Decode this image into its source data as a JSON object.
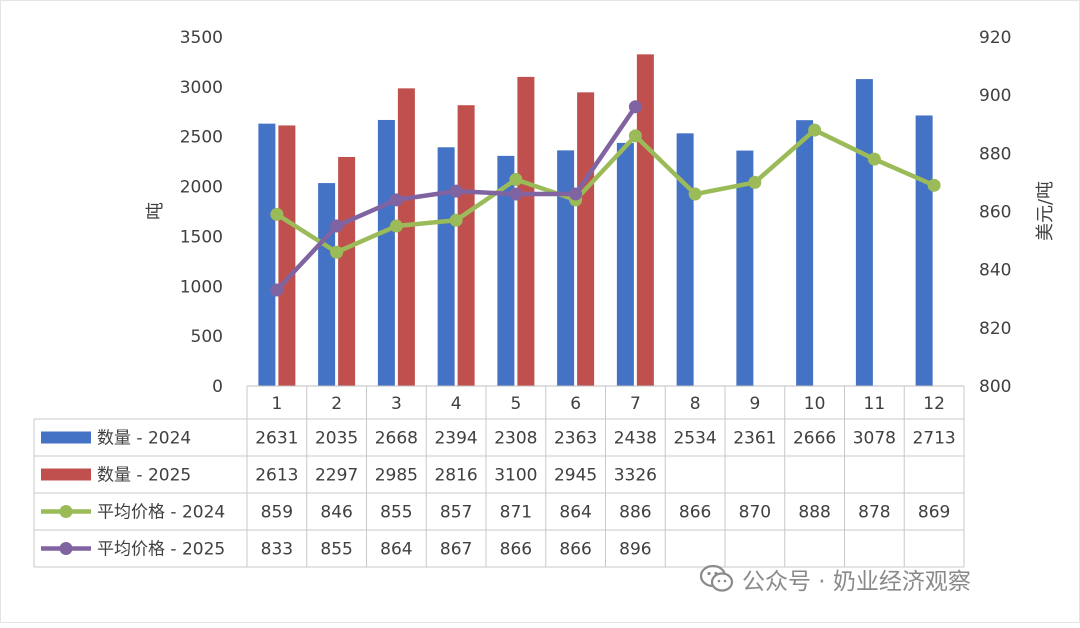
{
  "chart_data": {
    "type": "bar+line",
    "categories": [
      "1",
      "2",
      "3",
      "4",
      "5",
      "6",
      "7",
      "8",
      "9",
      "10",
      "11",
      "12"
    ],
    "y_left": {
      "label": "吨",
      "range": [
        0,
        3500
      ],
      "ticks": [
        "0",
        "500",
        "1000",
        "1500",
        "2000",
        "2500",
        "3000",
        "3500"
      ]
    },
    "y_right": {
      "label": "美元/吨",
      "range": [
        800,
        920
      ],
      "ticks": [
        "800",
        "820",
        "840",
        "860",
        "880",
        "900",
        "920"
      ]
    },
    "grid": false,
    "legend": "data-table-below",
    "series": [
      {
        "name": "数量 - 2024",
        "type": "bar",
        "axis": "left",
        "color": "#4472c4",
        "values": [
          2631,
          2035,
          2668,
          2394,
          2308,
          2363,
          2438,
          2534,
          2361,
          2666,
          3078,
          2713
        ]
      },
      {
        "name": "数量 - 2025",
        "type": "bar",
        "axis": "left",
        "color": "#c0504d",
        "values": [
          2613,
          2297,
          2985,
          2816,
          3100,
          2945,
          3326,
          null,
          null,
          null,
          null,
          null
        ]
      },
      {
        "name": "平均价格 - 2024",
        "type": "line",
        "axis": "right",
        "color": "#9bbb59",
        "values": [
          859,
          846,
          855,
          857,
          871,
          864,
          886,
          866,
          870,
          888,
          878,
          869
        ]
      },
      {
        "name": "平均价格 - 2025",
        "type": "line",
        "axis": "right",
        "color": "#8064a2",
        "values": [
          833,
          855,
          864,
          867,
          866,
          866,
          896,
          null,
          null,
          null,
          null,
          null
        ]
      }
    ]
  },
  "watermark": {
    "text": "公众号 · 奶业经济观察",
    "icon": "wechat-icon"
  }
}
